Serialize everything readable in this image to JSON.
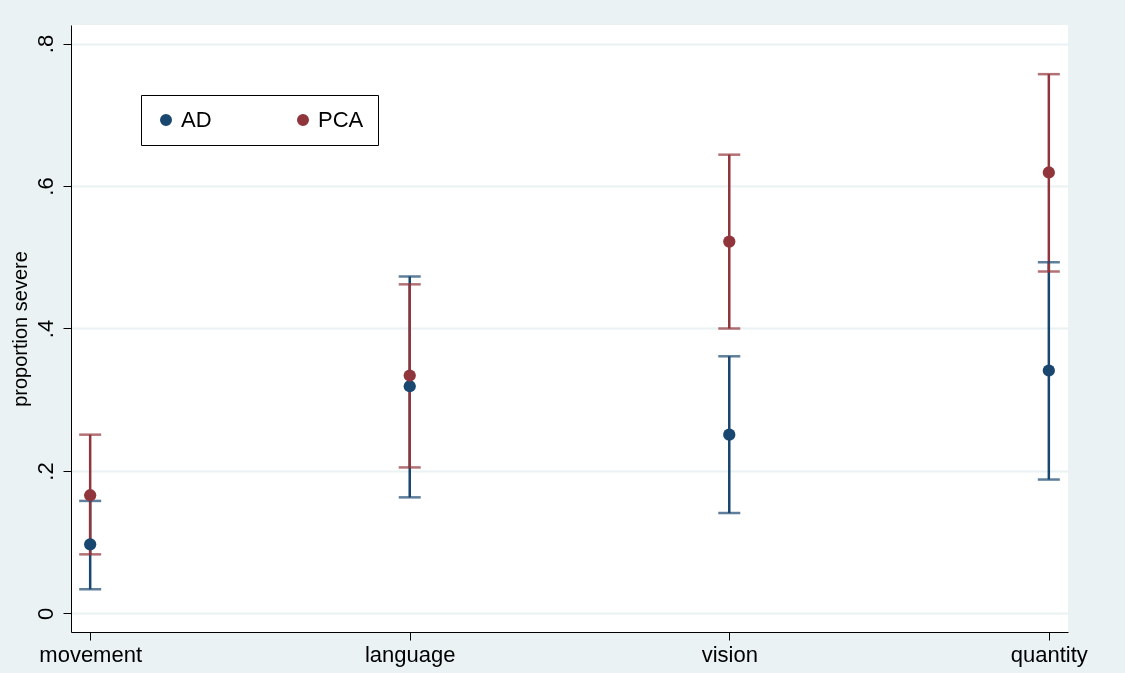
{
  "chart_data": {
    "type": "scatter",
    "ylabel": "proportion severe",
    "categories": [
      "movement",
      "language",
      "vision",
      "quantity"
    ],
    "series": [
      {
        "name": "AD",
        "color": "#1a476f",
        "values": [
          0.097,
          0.319,
          0.251,
          0.341
        ],
        "errors": [
          [
            0.034,
            0.158
          ],
          [
            0.163,
            0.473
          ],
          [
            0.141,
            0.361
          ],
          [
            0.188,
            0.493
          ]
        ]
      },
      {
        "name": "PCA",
        "color": "#90353b",
        "values": [
          0.166,
          0.334,
          0.522,
          0.619
        ],
        "errors": [
          [
            0.083,
            0.251
          ],
          [
            0.205,
            0.462
          ],
          [
            0.4,
            0.644
          ],
          [
            0.48,
            0.757
          ]
        ]
      }
    ],
    "ylim": [
      -0.026,
      0.826
    ],
    "yticks": [
      0,
      {
        "value": 0.2,
        "label": ".2"
      },
      {
        "value": 0.4,
        "label": ".4"
      },
      {
        "value": 0.6,
        "label": ".6"
      },
      {
        "value": 0.8,
        "label": ".8"
      }
    ],
    "grid": "y",
    "legend": "top left",
    "marker": "circle"
  }
}
